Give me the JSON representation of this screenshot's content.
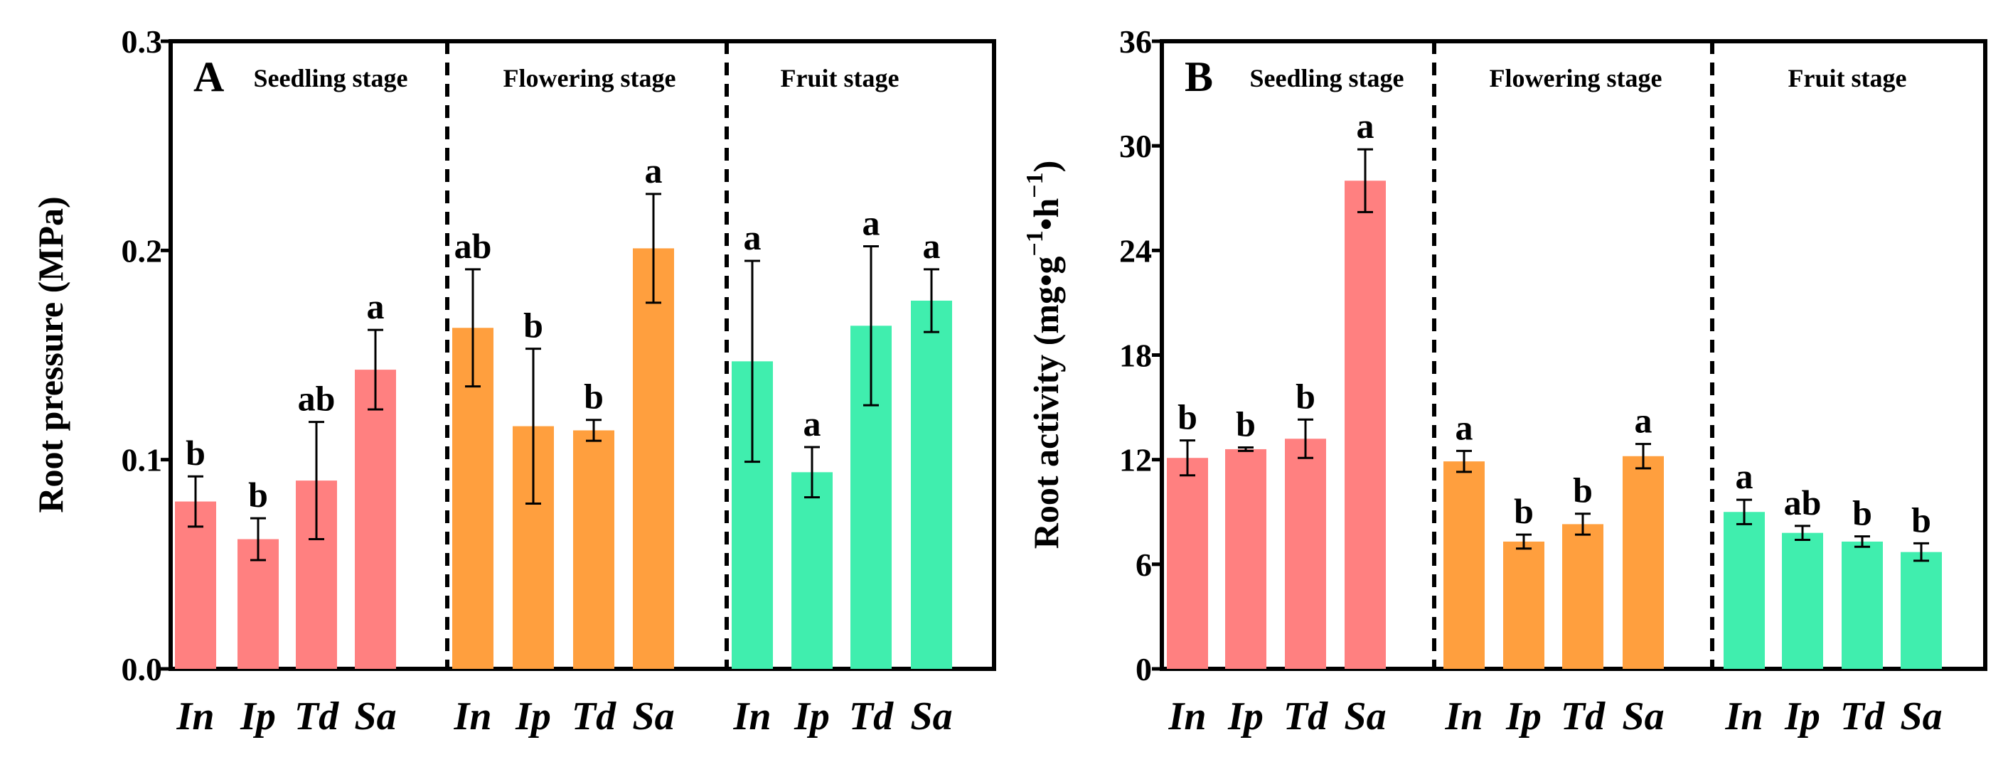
{
  "chart_data": [
    {
      "type": "bar",
      "panel_label": "A",
      "ylabel": "Root pressure (MPa)",
      "ylim": [
        0.0,
        0.3
      ],
      "yticks": [
        "0.0",
        "0.1",
        "0.2",
        "0.3"
      ],
      "stages": [
        "Seedling stage",
        "Flowering stage",
        "Fruit stage"
      ],
      "categories": [
        "In",
        "Ip",
        "Td",
        "Sa"
      ],
      "colors": [
        "#ff8080",
        "#ff9f3e",
        "#40eeae"
      ],
      "groups": [
        {
          "stage": "Seedling stage",
          "values": [
            0.08,
            0.062,
            0.09,
            0.143
          ],
          "errors": [
            0.012,
            0.01,
            0.028,
            0.019
          ],
          "letters": [
            "b",
            "b",
            "ab",
            "a"
          ]
        },
        {
          "stage": "Flowering stage",
          "values": [
            0.163,
            0.116,
            0.114,
            0.201
          ],
          "errors": [
            0.028,
            0.037,
            0.005,
            0.026
          ],
          "letters": [
            "ab",
            "b",
            "b",
            "a"
          ]
        },
        {
          "stage": "Fruit stage",
          "values": [
            0.147,
            0.094,
            0.164,
            0.176
          ],
          "errors": [
            0.048,
            0.012,
            0.038,
            0.015
          ],
          "letters": [
            "a",
            "a",
            "a",
            "a"
          ]
        }
      ]
    },
    {
      "type": "bar",
      "panel_label": "B",
      "ylabel": "Root activity (mg•g",
      "ylabel_sup1": "−1",
      "ylabel_mid": "•h",
      "ylabel_sup2": "−1",
      "ylabel_end": ")",
      "ylim": [
        0,
        36
      ],
      "yticks": [
        "0",
        "6",
        "12",
        "18",
        "24",
        "30",
        "36"
      ],
      "stages": [
        "Seedling stage",
        "Flowering stage",
        "Fruit stage"
      ],
      "categories": [
        "In",
        "Ip",
        "Td",
        "Sa"
      ],
      "colors": [
        "#ff8080",
        "#ff9f3e",
        "#40eeae"
      ],
      "groups": [
        {
          "stage": "Seedling stage",
          "values": [
            12.1,
            12.6,
            13.2,
            28.0
          ],
          "errors": [
            1.0,
            0.1,
            1.1,
            1.8
          ],
          "letters": [
            "b",
            "b",
            "b",
            "a"
          ]
        },
        {
          "stage": "Flowering stage",
          "values": [
            11.9,
            7.3,
            8.3,
            12.2
          ],
          "errors": [
            0.6,
            0.4,
            0.6,
            0.7
          ],
          "letters": [
            "a",
            "b",
            "b",
            "a"
          ]
        },
        {
          "stage": "Fruit stage",
          "values": [
            9.0,
            7.8,
            7.3,
            6.7
          ],
          "errors": [
            0.7,
            0.4,
            0.3,
            0.5
          ],
          "letters": [
            "a",
            "ab",
            "b",
            "b"
          ]
        }
      ]
    }
  ]
}
